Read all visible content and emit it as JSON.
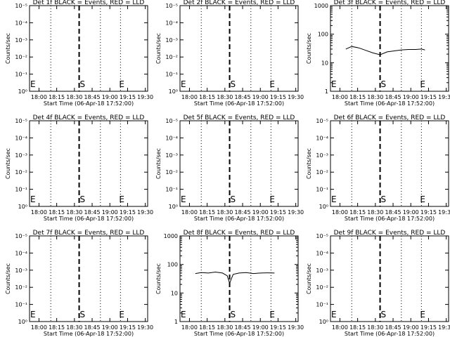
{
  "ylabel": "Counts/sec",
  "xlabel": "Start Time (06-Apr-18 17:52:00)",
  "xticks": [
    "18:00",
    "18:15",
    "18:30",
    "18:45",
    "19:00",
    "19:15",
    "19:30"
  ],
  "markers": {
    "start": "S",
    "end": "E"
  },
  "vlines": {
    "dotted_times": [
      "18:10",
      "18:52",
      "19:09"
    ],
    "dashed_time": "18:34",
    "start_marker_time": "18:34",
    "end_marker_time": "19:09"
  },
  "chart_data": [
    {
      "type": "line",
      "title": "Det 1f BLACK = Events, RED = LLD",
      "xlabel": "Start Time (06-Apr-18 17:52:00)",
      "ylabel": "Counts/sec",
      "x_range": [
        "17:52",
        "19:32"
      ],
      "yscale": "log",
      "ylim": [
        0.8,
        1.2
      ],
      "yticks": [
        "10⁰",
        "10⁻¹",
        "10⁻²",
        "10⁻³",
        "10⁻⁴",
        "10⁻⁵"
      ],
      "series": []
    },
    {
      "type": "line",
      "title": "Det 2f BLACK = Events, RED = LLD",
      "xlabel": "Start Time (06-Apr-18 17:52:00)",
      "ylabel": "Counts/sec",
      "x_range": [
        "17:52",
        "19:32"
      ],
      "yscale": "log",
      "ylim": [
        0.8,
        1.2
      ],
      "yticks": [
        "10⁰",
        "10⁻¹",
        "10⁻²",
        "10⁻³",
        "10⁻⁴",
        "10⁻⁵"
      ],
      "series": []
    },
    {
      "type": "line",
      "title": "Det 3f BLACK = Events, RED = LLD",
      "xlabel": "Start Time (06-Apr-18 17:52:00)",
      "ylabel": "Counts/sec",
      "x_range": [
        "17:52",
        "19:32"
      ],
      "yscale": "log",
      "ylim": [
        1,
        1000
      ],
      "yticks": [
        "1",
        "10",
        "100",
        "1000"
      ],
      "series": [
        {
          "x": [
            "18:05",
            "18:10",
            "18:16",
            "18:22",
            "18:28",
            "18:34",
            "18:40",
            "18:46",
            "18:52",
            "18:58",
            "19:04",
            "19:09",
            "19:12"
          ],
          "y": [
            30,
            37,
            33,
            27,
            22,
            19,
            24,
            26,
            28,
            29,
            29,
            30,
            28
          ]
        }
      ]
    },
    {
      "type": "line",
      "title": "Det 4f BLACK = Events, RED = LLD",
      "xlabel": "Start Time (06-Apr-18 17:52:00)",
      "ylabel": "Counts/sec",
      "x_range": [
        "17:52",
        "19:32"
      ],
      "yscale": "log",
      "ylim": [
        0.8,
        1.2
      ],
      "yticks": [
        "10⁰",
        "10⁻¹",
        "10⁻²",
        "10⁻³",
        "10⁻⁴",
        "10⁻⁵"
      ],
      "series": []
    },
    {
      "type": "line",
      "title": "Det 5f BLACK = Events, RED = LLD",
      "xlabel": "Start Time (06-Apr-18 17:52:00)",
      "ylabel": "Counts/sec",
      "x_range": [
        "17:52",
        "19:32"
      ],
      "yscale": "log",
      "ylim": [
        0.8,
        1.2
      ],
      "yticks": [
        "10⁰",
        "10⁻¹",
        "10⁻²",
        "10⁻³",
        "10⁻⁴",
        "10⁻⁵"
      ],
      "series": []
    },
    {
      "type": "line",
      "title": "Det 6f BLACK = Events, RED = LLD",
      "xlabel": "Start Time (06-Apr-18 17:52:00)",
      "ylabel": "Counts/sec",
      "x_range": [
        "17:52",
        "19:32"
      ],
      "yscale": "log",
      "ylim": [
        0.8,
        1.2
      ],
      "yticks": [
        "10⁰",
        "10⁻¹",
        "10⁻²",
        "10⁻³",
        "10⁻⁴",
        "10⁻⁵"
      ],
      "series": []
    },
    {
      "type": "line",
      "title": "Det 7f BLACK = Events, RED = LLD",
      "xlabel": "Start Time (06-Apr-18 17:52:00)",
      "ylabel": "Counts/sec",
      "x_range": [
        "17:52",
        "19:32"
      ],
      "yscale": "log",
      "ylim": [
        0.8,
        1.2
      ],
      "yticks": [
        "10⁰",
        "10⁻¹",
        "10⁻²",
        "10⁻³",
        "10⁻⁴",
        "10⁻⁵"
      ],
      "series": []
    },
    {
      "type": "line",
      "title": "Det 8f BLACK = Events, RED = LLD",
      "xlabel": "Start Time (06-Apr-18 17:52:00)",
      "ylabel": "Counts/sec",
      "x_range": [
        "17:52",
        "19:32"
      ],
      "yscale": "log",
      "ylim": [
        1,
        1000
      ],
      "yticks": [
        "1",
        "10",
        "100",
        "1000"
      ],
      "series": [
        {
          "x": [
            "18:05",
            "18:10",
            "18:16",
            "18:22",
            "18:28",
            "18:32",
            "18:34",
            "18:37",
            "18:42",
            "18:48",
            "18:54",
            "19:00",
            "19:06",
            "19:12"
          ],
          "y": [
            48,
            52,
            50,
            54,
            50,
            40,
            22,
            45,
            50,
            52,
            48,
            50,
            51,
            50
          ]
        }
      ]
    },
    {
      "type": "line",
      "title": "Det 9f BLACK = Events, RED = LLD",
      "xlabel": "Start Time (06-Apr-18 17:52:00)",
      "ylabel": "Counts/sec",
      "x_range": [
        "17:52",
        "19:32"
      ],
      "yscale": "log",
      "ylim": [
        0.8,
        1.2
      ],
      "yticks": [
        "10⁰",
        "10⁻¹",
        "10⁻²",
        "10⁻³",
        "10⁻⁴",
        "10⁻⁵"
      ],
      "series": []
    }
  ]
}
